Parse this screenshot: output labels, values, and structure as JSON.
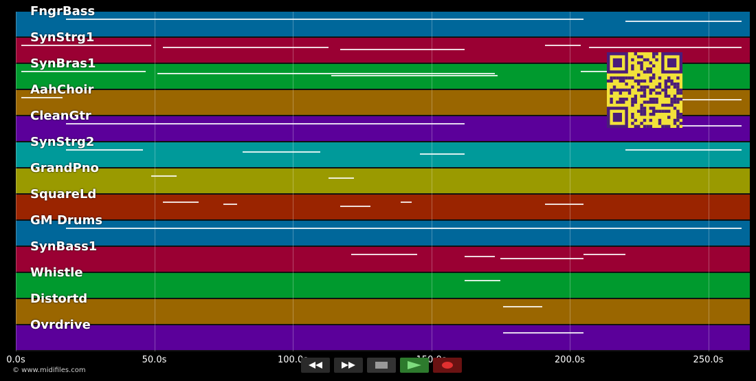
{
  "tracks": [
    {
      "label": "FngrBass",
      "color": "#00679a"
    },
    {
      "label": "SynStrg1",
      "color": "#9a0033"
    },
    {
      "label": "SynBras1",
      "color": "#009a2e"
    },
    {
      "label": "AahChoir",
      "color": "#9a6600"
    },
    {
      "label": "CleanGtr",
      "color": "#5b009a"
    },
    {
      "label": "SynStrg2",
      "color": "#009a9a"
    },
    {
      "label": "GrandPno",
      "color": "#9a9a00"
    },
    {
      "label": "SquareLd",
      "color": "#9a2400"
    },
    {
      "label": "GM Drums",
      "color": "#00679a"
    },
    {
      "label": "SynBass1",
      "color": "#9a0033"
    },
    {
      "label": "Whistle",
      "color": "#009a2e"
    },
    {
      "label": "Distortd",
      "color": "#9a6600"
    },
    {
      "label": "Ovrdrive",
      "color": "#5b009a"
    }
  ],
  "time_axis": {
    "ticks": [
      "0.0s",
      "50.0s",
      "100.0s",
      "150.0s",
      "200.0s",
      "250.0s"
    ],
    "tick_values": [
      0,
      50,
      100,
      150,
      200,
      250
    ],
    "max_seconds": 265
  },
  "copyright": "© www.midifiles.com",
  "transport": {
    "rewind_icon": "rewind-icon",
    "forward_icon": "fast-forward-icon",
    "stop_icon": "stop-icon",
    "play_icon": "play-icon",
    "record_icon": "record-icon"
  },
  "qr_code": "qr-code",
  "notes": [
    {
      "track": 0,
      "segments": [
        [
          18,
          205
        ],
        [
          220,
          262
        ]
      ]
    },
    {
      "track": 1,
      "segments": [
        [
          2,
          49
        ],
        [
          53,
          113
        ],
        [
          117,
          162
        ],
        [
          191,
          204
        ],
        [
          207,
          262
        ]
      ]
    },
    {
      "track": 2,
      "segments": [
        [
          2,
          47
        ],
        [
          51,
          173
        ],
        [
          114,
          174
        ],
        [
          204,
          220
        ]
      ]
    },
    {
      "track": 3,
      "segments": [
        [
          2,
          17
        ],
        [
          240,
          262
        ]
      ]
    },
    {
      "track": 4,
      "segments": [
        [
          18,
          162
        ],
        [
          240,
          262
        ]
      ]
    },
    {
      "track": 5,
      "segments": [
        [
          18,
          46
        ],
        [
          82,
          110
        ],
        [
          146,
          162
        ],
        [
          220,
          262
        ]
      ]
    },
    {
      "track": 6,
      "segments": [
        [
          49,
          58
        ],
        [
          113,
          122
        ]
      ]
    },
    {
      "track": 7,
      "segments": [
        [
          53,
          66
        ],
        [
          75,
          80
        ],
        [
          117,
          128
        ],
        [
          139,
          143
        ],
        [
          191,
          205
        ]
      ]
    },
    {
      "track": 8,
      "segments": [
        [
          18,
          262
        ]
      ]
    },
    {
      "track": 9,
      "segments": [
        [
          121,
          145
        ],
        [
          162,
          173
        ],
        [
          175,
          205
        ],
        [
          205,
          220
        ]
      ]
    },
    {
      "track": 10,
      "segments": [
        [
          162,
          175
        ]
      ]
    },
    {
      "track": 11,
      "segments": [
        [
          176,
          190
        ]
      ]
    },
    {
      "track": 12,
      "segments": [
        [
          176,
          205
        ]
      ]
    }
  ]
}
